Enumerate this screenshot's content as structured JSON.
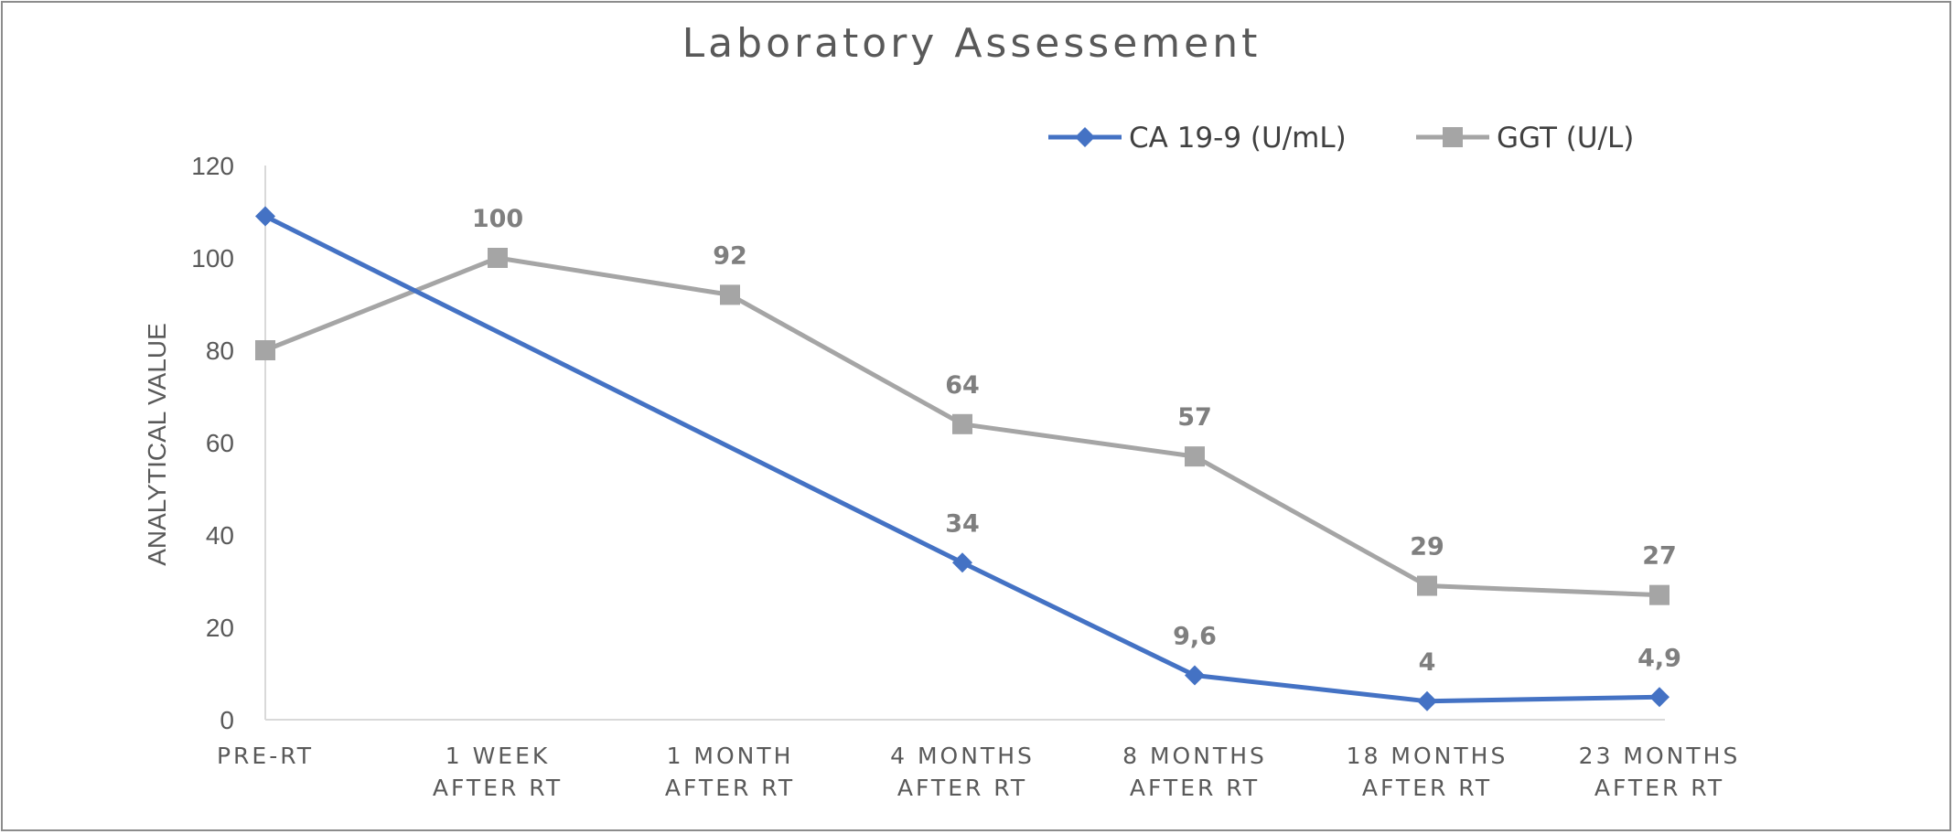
{
  "chart_data": {
    "type": "line",
    "title": "Laboratory Assessement",
    "ylabel": "ANALYTICAL VALUE",
    "xlabel": "",
    "ylim": [
      0,
      120
    ],
    "yticks": [
      "0",
      "20",
      "40",
      "60",
      "80",
      "100",
      "120"
    ],
    "categories": [
      [
        "PRE-RT"
      ],
      [
        "1 WEEK",
        "AFTER RT"
      ],
      [
        "1 MONTH",
        "AFTER RT"
      ],
      [
        "4 MONTHS",
        "AFTER RT"
      ],
      [
        "8 MONTHS",
        "AFTER RT"
      ],
      [
        "18 MONTHS",
        "AFTER RT"
      ],
      [
        "23 MONTHS",
        "AFTER RT"
      ]
    ],
    "legend_position": "top-right",
    "grid": false,
    "series": [
      {
        "name": "CA 19-9 (U/mL)",
        "color": "#4472c4",
        "marker": "diamond",
        "values": [
          109,
          null,
          null,
          34,
          9.6,
          4,
          4.9
        ],
        "labels": [
          "",
          "",
          "",
          "34",
          "9,6",
          "4",
          "4,9"
        ]
      },
      {
        "name": "GGT (U/L)",
        "color": "#a5a5a5",
        "marker": "square",
        "values": [
          80,
          100,
          92,
          64,
          57,
          29,
          27
        ],
        "labels": [
          "",
          "100",
          "92",
          "64",
          "57",
          "29",
          "27"
        ]
      }
    ]
  }
}
